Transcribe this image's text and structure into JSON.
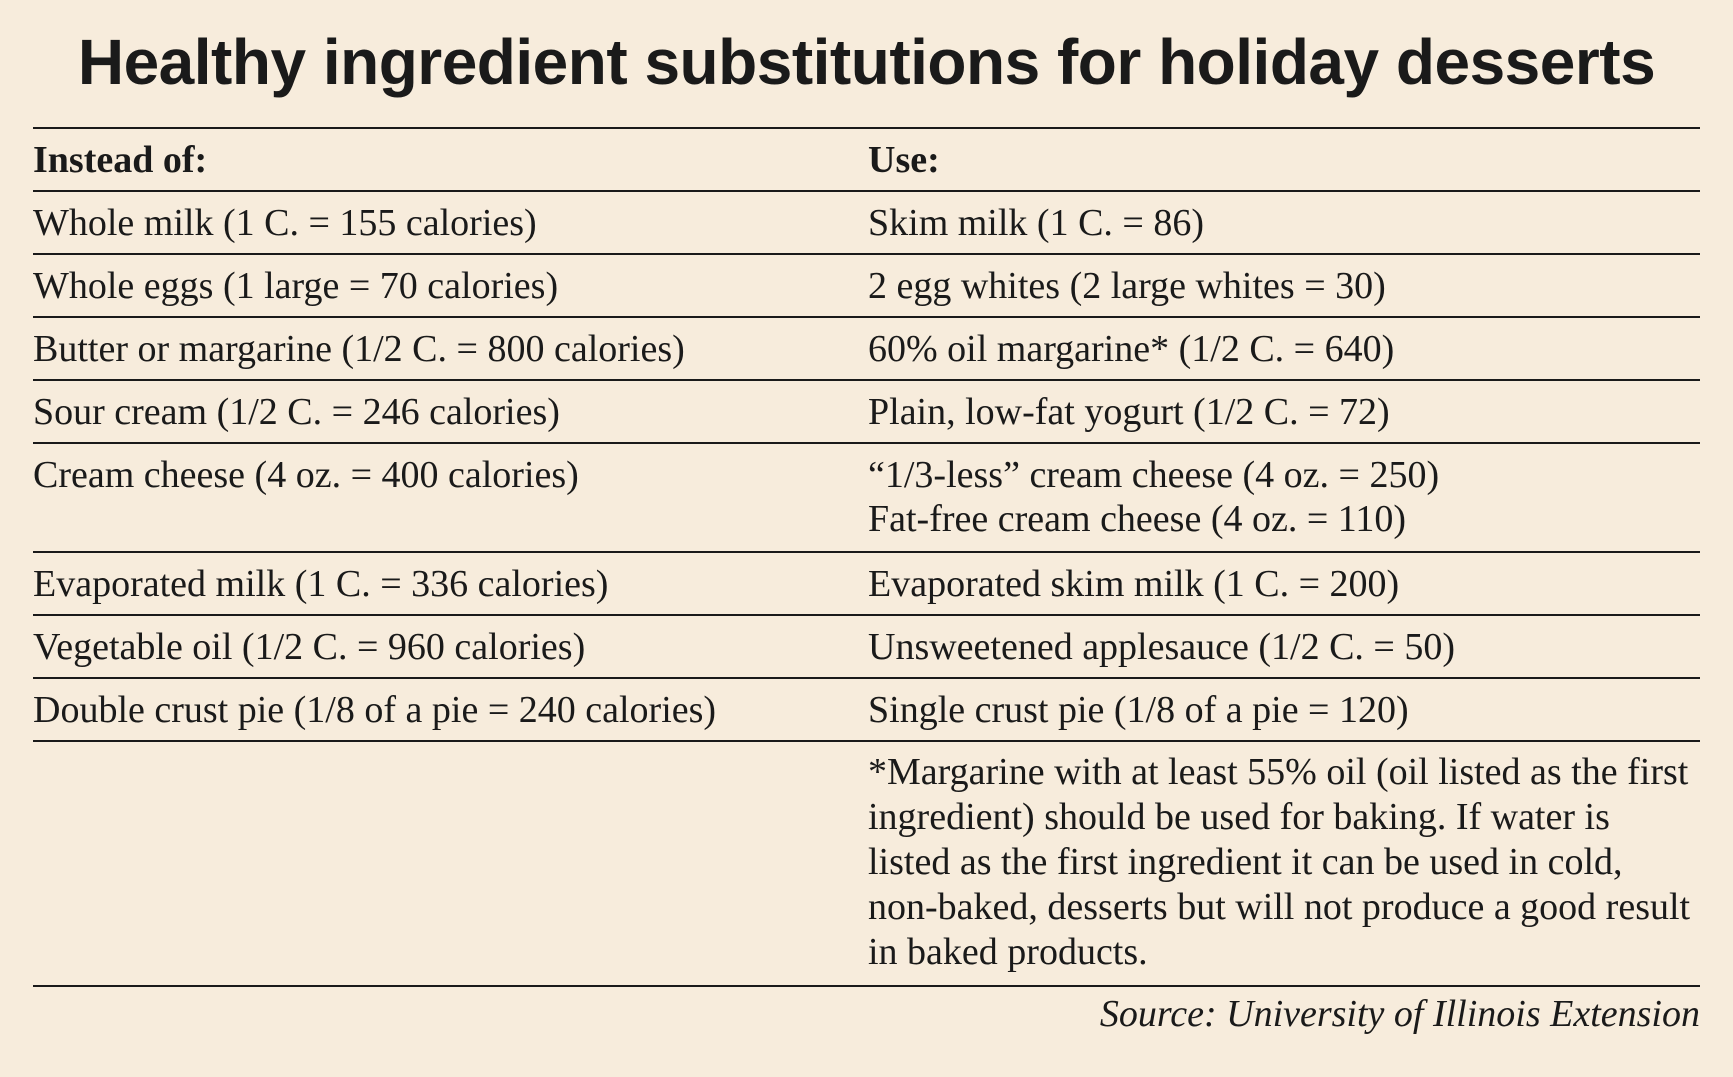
{
  "title": "Healthy ingredient substitutions for holiday desserts",
  "table": {
    "headers": [
      "Instead of:",
      "Use:"
    ],
    "rows": [
      {
        "instead": "Whole milk (1 C. = 155 calories)",
        "use": [
          "Skim milk (1 C. = 86)"
        ]
      },
      {
        "instead": "Whole eggs (1 large = 70 calories)",
        "use": [
          "2 egg whites (2 large whites = 30)"
        ]
      },
      {
        "instead": "Butter or margarine (1/2 C. = 800 calories)",
        "use": [
          "60% oil margarine* (1/2 C. = 640)"
        ]
      },
      {
        "instead": "Sour cream (1/2 C. = 246 calories)",
        "use": [
          "Plain, low-fat yogurt (1/2 C. = 72)"
        ]
      },
      {
        "instead": "Cream cheese (4 oz. = 400 calories)",
        "use": [
          "“1/3-less” cream cheese (4 oz. = 250)",
          "Fat-free cream cheese (4 oz. = 110)"
        ]
      },
      {
        "instead": "Evaporated milk (1 C. = 336 calories)",
        "use": [
          "Evaporated skim milk (1 C. = 200)"
        ]
      },
      {
        "instead": "Vegetable oil (1/2 C. = 960 calories)",
        "use": [
          "Unsweetened applesauce (1/2 C. = 50)"
        ]
      },
      {
        "instead": "Double crust pie (1/8 of a pie = 240 calories)",
        "use": [
          "Single crust pie (1/8 of a pie = 120)"
        ]
      }
    ],
    "footnote": "*Margarine with at least 55% oil (oil listed as the first ingredient) should be used for baking. If water is listed as the first ingredient it can be used in cold, non-baked, desserts but will not produce a good result in baked products."
  },
  "source": "Source: University of Illinois Extension"
}
